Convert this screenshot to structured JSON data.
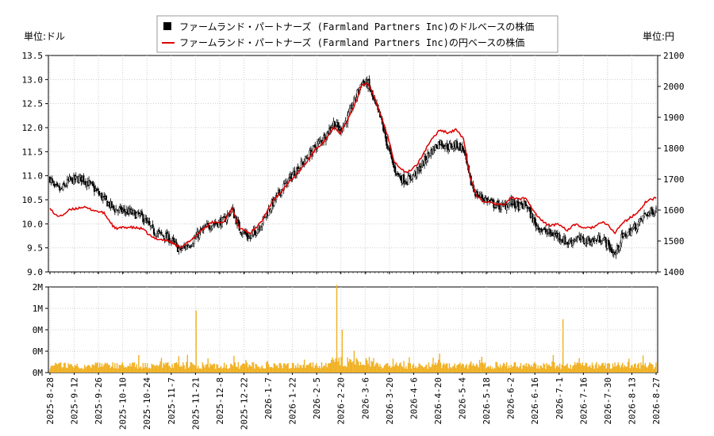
{
  "legend": [
    {
      "label": "ファームランド・パートナーズ (Farmland Partners Inc)のドルベースの株価",
      "color": "#000000",
      "marker": "square"
    },
    {
      "label": "ファームランド・パートナーズ (Farmland Partners Inc)の円ベースの株価",
      "color": "#dd0000",
      "marker": "line"
    }
  ],
  "units": {
    "left": "単位:ドル",
    "right": "単位:円"
  },
  "chart_data": {
    "type": "candlestick+line+bar",
    "x_labels": [
      "2025-8-28",
      "2025-9-12",
      "2025-9-26",
      "2025-10-10",
      "2025-10-24",
      "2025-11-7",
      "2025-11-21",
      "2025-12-8",
      "2025-12-22",
      "2026-1-7",
      "2026-1-22",
      "2026-2-5",
      "2026-2-20",
      "2026-3-6",
      "2026-3-20",
      "2026-4-6",
      "2026-4-20",
      "2026-5-4",
      "2026-5-18",
      "2026-6-2",
      "2026-6-16",
      "2026-7-1",
      "2026-7-16",
      "2026-7-30",
      "2026-8-13",
      "2026-8-27"
    ],
    "price_axis": {
      "ylim": [
        9.0,
        13.5
      ],
      "ticks": [
        "9.0",
        "9.5",
        "10.0",
        "10.5",
        "11.0",
        "11.5",
        "12.0",
        "12.5",
        "13.0",
        "13.5"
      ]
    },
    "yen_axis": {
      "ylim": [
        1400,
        2100
      ],
      "ticks": [
        "1400",
        "1500",
        "1600",
        "1700",
        "1800",
        "1900",
        "2000",
        "2100"
      ]
    },
    "volume_axis": {
      "ylim": [
        0,
        2000000
      ],
      "ticks": [
        "0M",
        "0M",
        "0M",
        "1M",
        "2M"
      ]
    },
    "usd_close_anchors": [
      [
        0,
        10.95
      ],
      [
        4,
        10.75
      ],
      [
        10,
        10.7
      ],
      [
        18,
        10.9
      ],
      [
        30,
        10.95
      ],
      [
        40,
        10.75
      ],
      [
        50,
        10.5
      ],
      [
        60,
        10.3
      ],
      [
        72,
        10.25
      ],
      [
        85,
        10.15
      ],
      [
        95,
        9.85
      ],
      [
        110,
        9.7
      ],
      [
        120,
        9.45
      ],
      [
        130,
        9.6
      ],
      [
        140,
        9.85
      ],
      [
        150,
        10.0
      ],
      [
        160,
        10.05
      ],
      [
        168,
        10.3
      ],
      [
        175,
        9.9
      ],
      [
        185,
        9.7
      ],
      [
        195,
        10.0
      ],
      [
        205,
        10.4
      ],
      [
        215,
        10.75
      ],
      [
        225,
        11.05
      ],
      [
        235,
        11.3
      ],
      [
        245,
        11.6
      ],
      [
        255,
        11.85
      ],
      [
        262,
        12.1
      ],
      [
        268,
        11.95
      ],
      [
        275,
        12.2
      ],
      [
        282,
        12.6
      ],
      [
        288,
        12.95
      ],
      [
        294,
        12.9
      ],
      [
        300,
        12.5
      ],
      [
        306,
        12.15
      ],
      [
        312,
        11.6
      ],
      [
        318,
        11.15
      ],
      [
        324,
        10.95
      ],
      [
        330,
        10.9
      ],
      [
        340,
        11.1
      ],
      [
        350,
        11.45
      ],
      [
        360,
        11.7
      ],
      [
        368,
        11.6
      ],
      [
        376,
        11.65
      ],
      [
        382,
        11.55
      ],
      [
        388,
        10.9
      ],
      [
        394,
        10.6
      ],
      [
        400,
        10.55
      ],
      [
        410,
        10.4
      ],
      [
        418,
        10.35
      ],
      [
        426,
        10.45
      ],
      [
        434,
        10.35
      ],
      [
        440,
        10.4
      ],
      [
        448,
        10.0
      ],
      [
        456,
        9.85
      ],
      [
        462,
        9.8
      ],
      [
        470,
        9.75
      ],
      [
        478,
        9.6
      ],
      [
        486,
        9.7
      ],
      [
        494,
        9.65
      ],
      [
        502,
        9.65
      ],
      [
        510,
        9.7
      ],
      [
        516,
        9.55
      ],
      [
        522,
        9.35
      ],
      [
        528,
        9.7
      ],
      [
        536,
        9.85
      ],
      [
        544,
        10.0
      ],
      [
        550,
        10.2
      ],
      [
        556,
        10.25
      ],
      [
        560,
        10.3
      ]
    ],
    "jpy_close_anchors": [
      [
        0,
        1610
      ],
      [
        4,
        1585
      ],
      [
        10,
        1580
      ],
      [
        18,
        1600
      ],
      [
        30,
        1610
      ],
      [
        40,
        1600
      ],
      [
        50,
        1590
      ],
      [
        60,
        1540
      ],
      [
        72,
        1545
      ],
      [
        85,
        1540
      ],
      [
        95,
        1510
      ],
      [
        110,
        1500
      ],
      [
        120,
        1480
      ],
      [
        130,
        1500
      ],
      [
        140,
        1535
      ],
      [
        150,
        1560
      ],
      [
        160,
        1560
      ],
      [
        168,
        1605
      ],
      [
        175,
        1545
      ],
      [
        185,
        1525
      ],
      [
        195,
        1560
      ],
      [
        205,
        1625
      ],
      [
        215,
        1665
      ],
      [
        225,
        1705
      ],
      [
        235,
        1745
      ],
      [
        245,
        1795
      ],
      [
        255,
        1830
      ],
      [
        262,
        1870
      ],
      [
        268,
        1850
      ],
      [
        275,
        1890
      ],
      [
        282,
        1945
      ],
      [
        288,
        2005
      ],
      [
        294,
        2010
      ],
      [
        300,
        1960
      ],
      [
        306,
        1905
      ],
      [
        312,
        1840
      ],
      [
        318,
        1760
      ],
      [
        324,
        1735
      ],
      [
        330,
        1720
      ],
      [
        340,
        1750
      ],
      [
        350,
        1815
      ],
      [
        360,
        1860
      ],
      [
        368,
        1850
      ],
      [
        376,
        1860
      ],
      [
        382,
        1830
      ],
      [
        388,
        1710
      ],
      [
        394,
        1645
      ],
      [
        400,
        1630
      ],
      [
        410,
        1620
      ],
      [
        418,
        1615
      ],
      [
        426,
        1640
      ],
      [
        434,
        1635
      ],
      [
        440,
        1640
      ],
      [
        448,
        1590
      ],
      [
        456,
        1560
      ],
      [
        462,
        1550
      ],
      [
        470,
        1555
      ],
      [
        478,
        1535
      ],
      [
        486,
        1555
      ],
      [
        494,
        1540
      ],
      [
        502,
        1545
      ],
      [
        510,
        1560
      ],
      [
        516,
        1550
      ],
      [
        522,
        1525
      ],
      [
        528,
        1555
      ],
      [
        536,
        1575
      ],
      [
        544,
        1595
      ],
      [
        550,
        1625
      ],
      [
        556,
        1635
      ],
      [
        560,
        1640
      ]
    ],
    "volume_spikes": [
      [
        135,
        1450000
      ],
      [
        265,
        2050000
      ],
      [
        270,
        1000000
      ],
      [
        474,
        1250000
      ],
      [
        548,
        400000
      ]
    ],
    "volume_base": 150000
  }
}
